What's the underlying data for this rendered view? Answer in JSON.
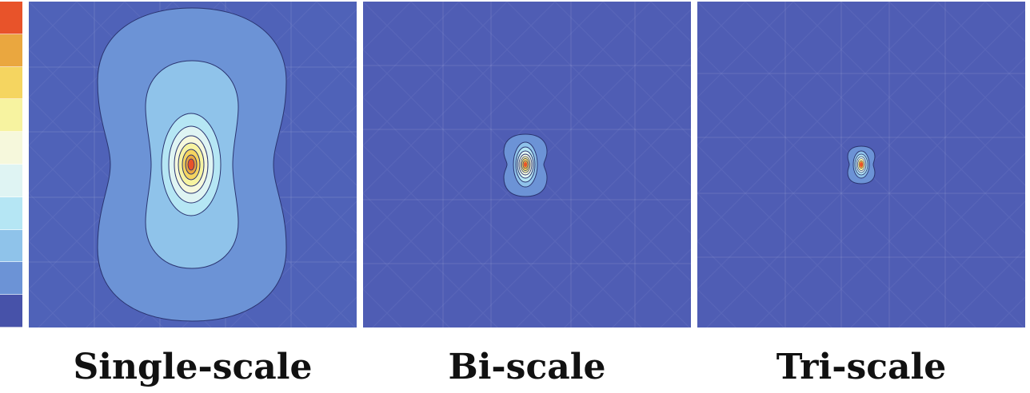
{
  "colorbar": {
    "colors": [
      "#e8532a",
      "#eaa73f",
      "#f5d560",
      "#f7f3a0",
      "#f6f8dc",
      "#dff4f3",
      "#b5e6f4",
      "#8fc3ea",
      "#6c93d6",
      "#4752a9"
    ]
  },
  "background_color": "#4f62b8",
  "panels": [
    {
      "caption": "Single-scale"
    },
    {
      "caption": "Bi-scale"
    },
    {
      "caption": "Tri-scale"
    }
  ]
}
